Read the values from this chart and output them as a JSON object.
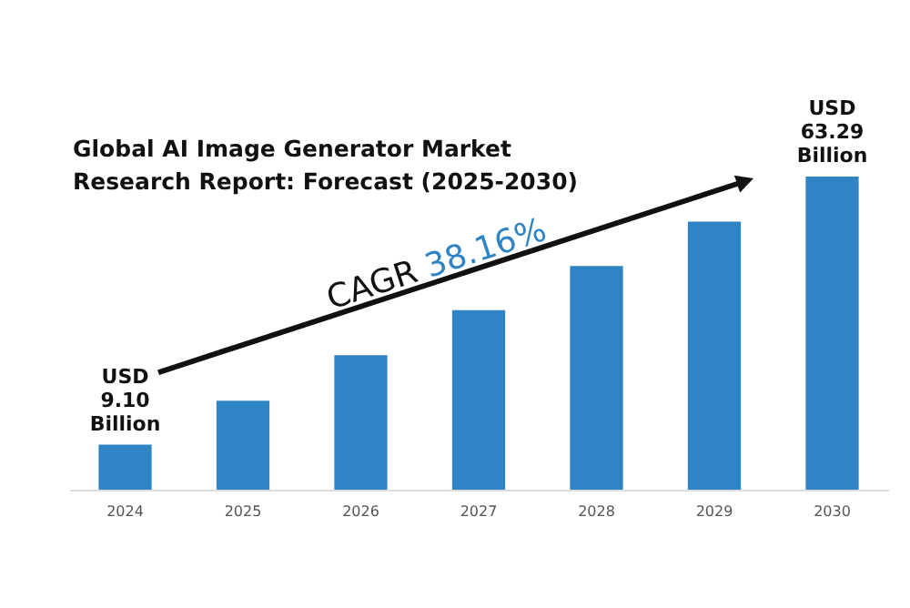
{
  "chart_data": {
    "type": "bar",
    "title": "Global AI Image Generator Market Research Report: Forecast (2025-2030)",
    "categories": [
      "2024",
      "2025",
      "2026",
      "2027",
      "2028",
      "2029",
      "2030"
    ],
    "values": [
      9.1,
      18.0,
      27.2,
      36.3,
      45.2,
      54.2,
      63.29
    ],
    "color": "#2f84c6",
    "value_labels": [
      "USD 9.10 Billion",
      null,
      null,
      null,
      null,
      null,
      "USD 63.29 Billion"
    ],
    "annotations": [
      "CAGR 38.16%"
    ]
  }
}
